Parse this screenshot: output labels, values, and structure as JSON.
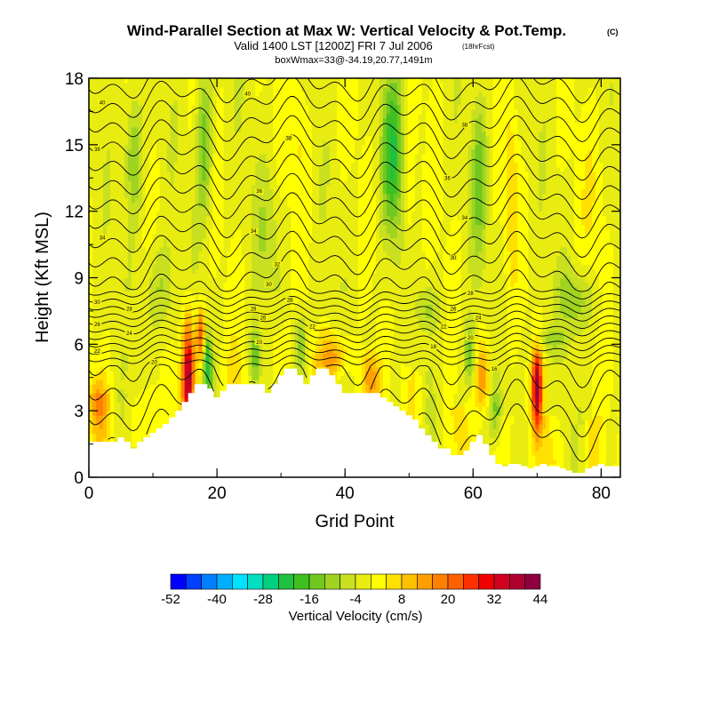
{
  "chart_data": {
    "type": "heatmap",
    "title": "Wind-Parallel Section at Max W: Vertical Velocity & Pot.Temp.",
    "title_mark": "(C)",
    "subtitle_main": "Valid 1400 LST [1200Z] FRI 7 Jul 2006",
    "subtitle_note": "(18hrFcst)",
    "subtitle2": "boxWmax=33@-34.19,20.77,1491m",
    "xlabel": "Grid Point",
    "ylabel": "Height (Kft MSL)",
    "xlim": [
      0,
      83
    ],
    "ylim": [
      0,
      18
    ],
    "xticks": [
      "0",
      "20",
      "40",
      "60",
      "80"
    ],
    "yticks": [
      "0",
      "3",
      "6",
      "9",
      "12",
      "15",
      "18"
    ],
    "colorbar": {
      "label": "Vertical Velocity (cm/s)",
      "levels": [
        -52,
        -48,
        -44,
        -40,
        -36,
        -32,
        -28,
        -24,
        -20,
        -16,
        -12,
        -8,
        -4,
        0,
        4,
        8,
        12,
        16,
        20,
        24,
        28,
        32,
        36,
        40,
        44
      ],
      "tick_labels": [
        "-52",
        "-40",
        "-28",
        "-16",
        "-4",
        "8",
        "20",
        "32",
        "44"
      ],
      "colors": [
        "#0000ff",
        "#0040ff",
        "#0080ff",
        "#00b0ff",
        "#00e0ff",
        "#00e0c0",
        "#00d080",
        "#20c040",
        "#40c020",
        "#70c820",
        "#a0d420",
        "#c8e020",
        "#e8ec10",
        "#ffff00",
        "#ffe000",
        "#ffc000",
        "#ffa000",
        "#ff8000",
        "#ff6000",
        "#ff3000",
        "#f00000",
        "#d00020",
        "#b00030",
        "#900040"
      ]
    },
    "terrain_kft": [
      1.6,
      1.6,
      1.6,
      1.6,
      1.6,
      1.8,
      1.6,
      1.3,
      1.6,
      1.8,
      2.0,
      2.2,
      2.4,
      2.7,
      3.0,
      3.4,
      3.8,
      4.2,
      4.2,
      4.0,
      3.6,
      3.9,
      4.2,
      4.2,
      4.2,
      4.2,
      4.2,
      4.2,
      3.8,
      4.2,
      4.6,
      4.9,
      4.9,
      4.6,
      4.2,
      4.6,
      4.9,
      4.9,
      4.6,
      4.2,
      3.8,
      3.8,
      3.8,
      3.8,
      3.8,
      3.8,
      3.6,
      3.4,
      3.2,
      3.0,
      2.8,
      2.6,
      2.2,
      1.9,
      1.6,
      1.3,
      1.3,
      1.0,
      1.0,
      1.2,
      1.6,
      1.9,
      1.5,
      1.0,
      0.6,
      0.5,
      0.6,
      0.6,
      0.5,
      0.4,
      0.5,
      0.6,
      0.5,
      0.5,
      0.4,
      0.3,
      0.2,
      0.2,
      0.4,
      0.5,
      0.6,
      0.5,
      0.5,
      0.5
    ],
    "updrafts": [
      {
        "x": 15.5,
        "y": 4.6,
        "rx": 0.9,
        "ry": 2.6,
        "w": 36
      },
      {
        "x": 17.5,
        "y": 6.5,
        "rx": 0.7,
        "ry": 1.1,
        "w": 24
      },
      {
        "x": 70.0,
        "y": 4.0,
        "rx": 0.8,
        "ry": 1.8,
        "w": 40
      },
      {
        "x": 61.5,
        "y": 4.5,
        "rx": 1.2,
        "ry": 1.6,
        "w": 16
      },
      {
        "x": 38.5,
        "y": 5.4,
        "rx": 2.2,
        "ry": 0.9,
        "w": 14
      },
      {
        "x": 44.0,
        "y": 4.4,
        "rx": 1.3,
        "ry": 1.0,
        "w": 12
      },
      {
        "x": 1.5,
        "y": 3.5,
        "rx": 1.5,
        "ry": 1.2,
        "w": 12
      },
      {
        "x": 66.0,
        "y": 13.0,
        "rx": 1.0,
        "ry": 4.0,
        "w": 8
      },
      {
        "x": 50.0,
        "y": 13.0,
        "rx": 1.1,
        "ry": 4.0,
        "w": 6
      },
      {
        "x": 33.0,
        "y": 15.5,
        "rx": 1.5,
        "ry": 3.0,
        "w": 6
      },
      {
        "x": 79.0,
        "y": 13.0,
        "rx": 2.0,
        "ry": 4.0,
        "w": 4
      },
      {
        "x": 72.0,
        "y": 6.2,
        "rx": 2.5,
        "ry": 0.6,
        "w": -8
      }
    ],
    "downdrafts": [
      {
        "x": 47.5,
        "y": 14.5,
        "rx": 1.8,
        "ry": 3.8,
        "w": -18
      },
      {
        "x": 18.0,
        "y": 15.0,
        "rx": 1.2,
        "ry": 3.5,
        "w": -14
      },
      {
        "x": 7.0,
        "y": 14.5,
        "rx": 1.4,
        "ry": 3.0,
        "w": -12
      },
      {
        "x": 61.0,
        "y": 13.5,
        "rx": 1.2,
        "ry": 3.5,
        "w": -12
      },
      {
        "x": 18.5,
        "y": 5.2,
        "rx": 0.7,
        "ry": 1.5,
        "w": -20
      },
      {
        "x": 26.0,
        "y": 5.5,
        "rx": 0.8,
        "ry": 1.4,
        "w": -14
      },
      {
        "x": 33.0,
        "y": 6.0,
        "rx": 0.9,
        "ry": 1.4,
        "w": -12
      },
      {
        "x": 59.5,
        "y": 5.5,
        "rx": 0.9,
        "ry": 1.6,
        "w": -14
      },
      {
        "x": 63.5,
        "y": 2.8,
        "rx": 1.0,
        "ry": 1.2,
        "w": -12
      },
      {
        "x": 11.0,
        "y": 8.5,
        "rx": 2.5,
        "ry": 2.0,
        "w": -8
      },
      {
        "x": 76.0,
        "y": 8.0,
        "rx": 3.0,
        "ry": 1.5,
        "w": -10
      },
      {
        "x": 53.0,
        "y": 7.6,
        "rx": 2.0,
        "ry": 1.0,
        "w": -8
      },
      {
        "x": 28.0,
        "y": 11.0,
        "rx": 2.0,
        "ry": 3.0,
        "w": -6
      }
    ],
    "theta_levels_c": [
      16,
      18,
      20,
      22,
      24,
      26,
      28,
      30,
      32,
      34,
      36,
      38,
      40
    ],
    "contour_labels": [
      {
        "text": "40",
        "x": 2.1,
        "y": 16.9
      },
      {
        "text": "40",
        "x": 24.8,
        "y": 17.3
      },
      {
        "text": "38",
        "x": 1.3,
        "y": 14.8
      },
      {
        "text": "38",
        "x": 31.2,
        "y": 15.3
      },
      {
        "text": "38",
        "x": 58.7,
        "y": 15.9
      },
      {
        "text": "36",
        "x": 26.6,
        "y": 12.9
      },
      {
        "text": "36",
        "x": 56.0,
        "y": 13.5
      },
      {
        "text": "34",
        "x": 2.1,
        "y": 10.8
      },
      {
        "text": "34",
        "x": 25.7,
        "y": 11.1
      },
      {
        "text": "34",
        "x": 58.7,
        "y": 11.7
      },
      {
        "text": "32",
        "x": 29.4,
        "y": 9.6
      },
      {
        "text": "30",
        "x": 28.1,
        "y": 8.7
      },
      {
        "text": "30",
        "x": 56.9,
        "y": 9.9
      },
      {
        "text": "30",
        "x": 1.3,
        "y": 7.9
      },
      {
        "text": "28",
        "x": 6.3,
        "y": 7.6
      },
      {
        "text": "28",
        "x": 25.7,
        "y": 7.6
      },
      {
        "text": "28",
        "x": 31.4,
        "y": 8.0
      },
      {
        "text": "28",
        "x": 59.6,
        "y": 8.3
      },
      {
        "text": "26",
        "x": 1.3,
        "y": 6.9
      },
      {
        "text": "26",
        "x": 27.2,
        "y": 7.2
      },
      {
        "text": "26",
        "x": 56.9,
        "y": 7.6
      },
      {
        "text": "24",
        "x": 6.3,
        "y": 6.5
      },
      {
        "text": "24",
        "x": 60.8,
        "y": 7.2
      },
      {
        "text": "22",
        "x": 1.3,
        "y": 5.7
      },
      {
        "text": "22",
        "x": 34.9,
        "y": 6.8
      },
      {
        "text": "22",
        "x": 55.4,
        "y": 6.8
      },
      {
        "text": "20",
        "x": 10.2,
        "y": 5.2
      },
      {
        "text": "20",
        "x": 26.6,
        "y": 6.1
      },
      {
        "text": "20",
        "x": 59.6,
        "y": 6.3
      },
      {
        "text": "18",
        "x": 53.8,
        "y": 5.9
      },
      {
        "text": "16",
        "x": 63.3,
        "y": 4.9
      }
    ]
  }
}
